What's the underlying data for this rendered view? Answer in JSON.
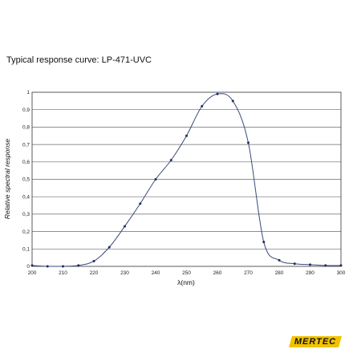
{
  "caption": "Typical response curve: LP-471-UVC",
  "logo_text": "MERTEC",
  "colors": {
    "curve": "#3a4a7a",
    "point": "#1f2a66",
    "grid": "#6a6a6a",
    "logo_bg": "#f2c200"
  },
  "chart_data": {
    "type": "line",
    "xlabel": "λ(nm)",
    "ylabel": "Relative spectral response",
    "xlim": [
      200,
      300
    ],
    "ylim": [
      0,
      1
    ],
    "xticks": [
      "200",
      "210",
      "220",
      "230",
      "240",
      "250",
      "260",
      "270",
      "280",
      "290",
      "300"
    ],
    "yticks": [
      "0",
      "0,1",
      "0,2",
      "0,3",
      "0,4",
      "0,5",
      "0,6",
      "0,7",
      "0,8",
      "0,9",
      "1"
    ],
    "grid": "horizontal",
    "x": [
      200,
      205,
      210,
      215,
      220,
      225,
      230,
      235,
      240,
      245,
      250,
      255,
      260,
      265,
      270,
      275,
      280,
      285,
      290,
      295,
      300
    ],
    "y": [
      0.005,
      0.0,
      0.0,
      0.005,
      0.03,
      0.11,
      0.23,
      0.36,
      0.5,
      0.61,
      0.75,
      0.92,
      0.99,
      0.95,
      0.71,
      0.14,
      0.035,
      0.015,
      0.01,
      0.005,
      0.005
    ]
  }
}
